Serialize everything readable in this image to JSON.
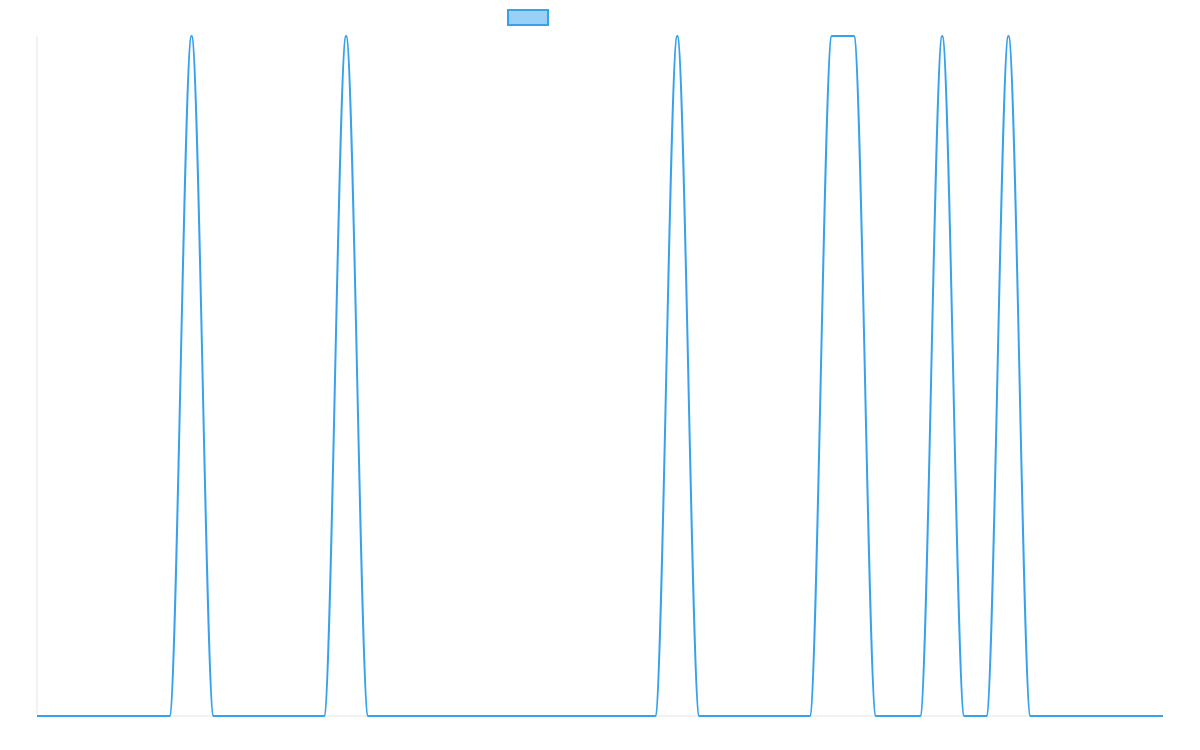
{
  "chart_data": {
    "type": "line",
    "title": "",
    "xlabel": "",
    "ylabel": "",
    "grid": false,
    "legend_position": "top-center",
    "x": [
      0,
      6,
      7,
      8,
      13,
      14,
      15,
      28,
      29,
      30,
      35,
      36,
      37,
      38,
      40,
      41,
      42,
      43,
      44,
      45,
      51
    ],
    "series": [
      {
        "values": [
          0,
          0,
          1,
          0,
          0,
          1,
          0,
          0,
          1,
          0,
          0,
          1,
          1,
          0,
          0,
          1,
          0,
          0,
          1,
          0,
          0
        ],
        "color": "#36a2eb",
        "fill": "#9ad0f5"
      }
    ],
    "xlim": [
      0,
      51
    ],
    "ylim": [
      0,
      1
    ],
    "axis_color": "#e5e5e5"
  }
}
